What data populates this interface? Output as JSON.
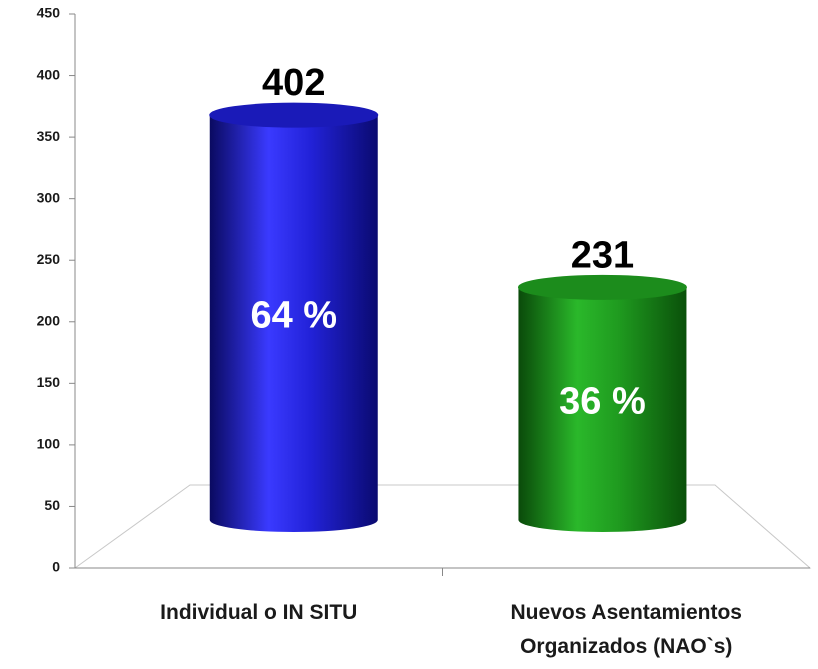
{
  "chart_data": {
    "type": "bar3d",
    "categories": [
      "Individual o IN SITU",
      "Nuevos Asentamientos Organizados (NAO`s)"
    ],
    "values": [
      402,
      231
    ],
    "percent_labels": [
      "64 %",
      "36 %"
    ],
    "colors": [
      "#1a1ab8",
      "#1c8c1c"
    ],
    "ylim": [
      0,
      450
    ],
    "yticks": [
      0,
      50,
      100,
      150,
      200,
      250,
      300,
      350,
      400,
      450
    ]
  }
}
